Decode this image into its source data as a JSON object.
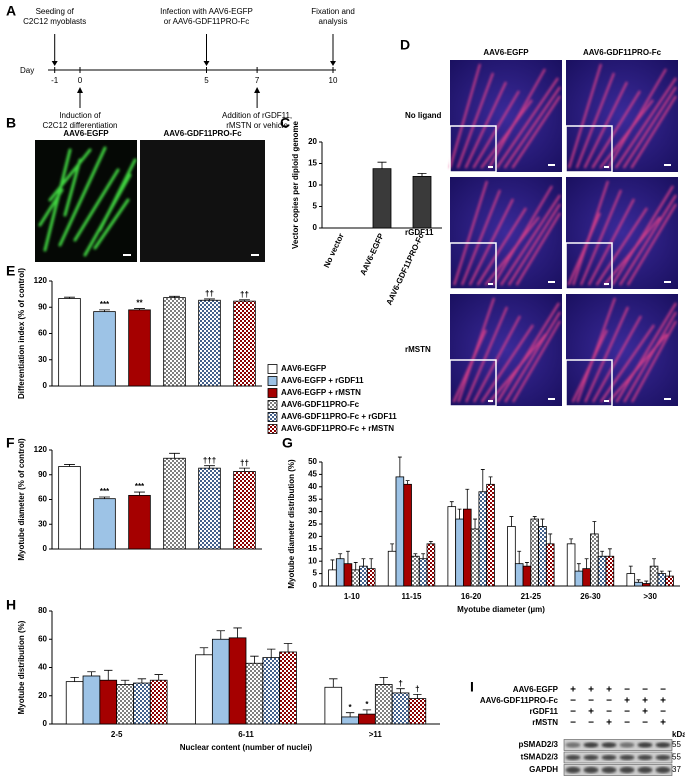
{
  "panel_letters": [
    "A",
    "B",
    "C",
    "D",
    "E",
    "F",
    "G",
    "H",
    "I"
  ],
  "timeline": {
    "day_label": "Day",
    "days": [
      "-1",
      "0",
      "5",
      "7",
      "10"
    ],
    "events": [
      {
        "day": "-1",
        "side": "above",
        "lines": [
          "Seeding of",
          "C2C12 myoblasts"
        ]
      },
      {
        "day": "5",
        "side": "above",
        "lines": [
          "Infection with AAV6-EGFP",
          "or AAV6-GDF11PRO-Fc"
        ]
      },
      {
        "day": "10",
        "side": "above",
        "lines": [
          "Fixation and",
          "analysis"
        ]
      },
      {
        "day": "0",
        "side": "below",
        "lines": [
          "Induction of",
          "C2C12 differentiation"
        ]
      },
      {
        "day": "7",
        "side": "below",
        "lines": [
          "Addition of rGDF11,",
          "rMSTN or vehicle"
        ]
      }
    ]
  },
  "panel_b": {
    "labels": [
      "AAV6-EGFP",
      "AAV6-GDF11PRO-Fc"
    ]
  },
  "panel_d": {
    "columns": [
      "AAV6-EGFP",
      "AAV6-GDF11PRO-Fc"
    ],
    "rows": [
      "No ligand",
      "rGDF11",
      "rMSTN"
    ]
  },
  "legend": [
    "AAV6-EGFP",
    "AAV6-EGFP + rGDF11",
    "AAV6-EGFP + rMSTN",
    "AAV6-GDF11PRO-Fc",
    "AAV6-GDF11PRO-Fc + rGDF11",
    "AAV6-GDF11PRO-Fc + rMSTN"
  ],
  "chart_data": [
    {
      "type": "bar",
      "y_label": "Vector copies per diploid genome",
      "categories": [
        "No vector",
        "AAV6-EGFP",
        "AAV6-GDF11PRO-Fc"
      ],
      "series": [
        {
          "color": "#3a3a3a",
          "values": [
            0,
            13.8,
            12.0
          ],
          "errors": [
            0,
            1.5,
            0.7
          ]
        }
      ],
      "ylim": [
        0,
        20
      ],
      "yticks": [
        0,
        5,
        10,
        15,
        20
      ]
    },
    {
      "type": "bar",
      "y_label": "Differentiation index (% of control)",
      "series": [
        {
          "color": "#ffffff",
          "values": [
            100
          ],
          "errors": [
            1.5
          ]
        },
        {
          "color": "#9dc3e6",
          "values": [
            85
          ],
          "errors": [
            2
          ]
        },
        {
          "color": "#a50000",
          "values": [
            87
          ],
          "errors": [
            1.5
          ]
        },
        {
          "color": "#7f7f7f",
          "pattern": "checker",
          "values": [
            101
          ],
          "errors": [
            1.5
          ]
        },
        {
          "color": "#44618c",
          "pattern": "checker",
          "values": [
            98
          ],
          "errors": [
            1.5
          ]
        },
        {
          "color": "#8b0000",
          "pattern": "checker",
          "values": [
            97
          ],
          "errors": [
            1.5
          ]
        }
      ],
      "annotations": [
        {
          "series": 1,
          "label": "***"
        },
        {
          "series": 2,
          "label": "**"
        },
        {
          "series": 4,
          "label": "††"
        },
        {
          "series": 5,
          "label": "††"
        }
      ],
      "ylim": [
        0,
        120
      ],
      "yticks": [
        0,
        30,
        60,
        90,
        120
      ]
    },
    {
      "type": "bar",
      "y_label": "Myotube diameter (% of control)",
      "series": [
        {
          "color": "#ffffff",
          "values": [
            100
          ],
          "errors": [
            2.5
          ]
        },
        {
          "color": "#9dc3e6",
          "values": [
            61
          ],
          "errors": [
            2
          ]
        },
        {
          "color": "#a50000",
          "values": [
            65
          ],
          "errors": [
            4
          ]
        },
        {
          "color": "#7f7f7f",
          "pattern": "checker",
          "values": [
            110
          ],
          "errors": [
            6
          ]
        },
        {
          "color": "#44618c",
          "pattern": "checker",
          "values": [
            98
          ],
          "errors": [
            3
          ]
        },
        {
          "color": "#8b0000",
          "pattern": "checker",
          "values": [
            94
          ],
          "errors": [
            4
          ]
        }
      ],
      "annotations": [
        {
          "series": 1,
          "label": "***"
        },
        {
          "series": 2,
          "label": "***"
        },
        {
          "series": 4,
          "label": "†††"
        },
        {
          "series": 5,
          "label": "††"
        }
      ],
      "ylim": [
        0,
        120
      ],
      "yticks": [
        0,
        30,
        60,
        90,
        120
      ]
    },
    {
      "type": "bar",
      "y_label": "Myotube diameter distribution (%)",
      "x_label": "Myotube diameter (µm)",
      "categories": [
        "1-10",
        "11-15",
        "16-20",
        "21-25",
        "26-30",
        ">30"
      ],
      "series": [
        {
          "color": "#ffffff",
          "values": [
            6.5,
            14,
            32,
            24,
            17,
            5
          ],
          "errors": [
            4,
            3,
            2,
            4,
            2,
            3
          ]
        },
        {
          "color": "#9dc3e6",
          "values": [
            11,
            44,
            27,
            9,
            6,
            1.5
          ],
          "errors": [
            2,
            8,
            4,
            5,
            3,
            1
          ]
        },
        {
          "color": "#a50000",
          "values": [
            9,
            41,
            31,
            8,
            7,
            1
          ],
          "errors": [
            5,
            1.5,
            8,
            1.5,
            4,
            1
          ]
        },
        {
          "color": "#7f7f7f",
          "pattern": "checker",
          "values": [
            6.5,
            12,
            23,
            27,
            21,
            8
          ],
          "errors": [
            3,
            1,
            4,
            1,
            5,
            3
          ]
        },
        {
          "color": "#44618c",
          "pattern": "checker",
          "values": [
            8,
            11,
            38,
            24,
            12,
            5
          ],
          "errors": [
            3,
            2,
            9,
            3,
            2,
            1
          ]
        },
        {
          "color": "#8b0000",
          "pattern": "checker",
          "values": [
            7,
            17,
            41,
            17,
            12,
            4
          ],
          "errors": [
            4,
            1,
            3,
            4,
            3,
            2
          ]
        }
      ],
      "ylim": [
        0,
        50
      ],
      "yticks": [
        0,
        5,
        10,
        15,
        20,
        25,
        30,
        35,
        40,
        45,
        50
      ]
    },
    {
      "type": "bar",
      "y_label": "Myotube distribution (%)",
      "x_label": "Nuclear content (number of nuclei)",
      "categories": [
        "2-5",
        "6-11",
        ">11"
      ],
      "series": [
        {
          "color": "#ffffff",
          "values": [
            30,
            49,
            26
          ],
          "errors": [
            3,
            5,
            6
          ]
        },
        {
          "color": "#9dc3e6",
          "values": [
            34,
            60,
            5
          ],
          "errors": [
            3,
            6,
            3
          ]
        },
        {
          "color": "#a50000",
          "values": [
            31,
            61,
            7
          ],
          "errors": [
            7,
            7,
            3
          ]
        },
        {
          "color": "#7f7f7f",
          "pattern": "checker",
          "values": [
            28,
            43,
            28
          ],
          "errors": [
            3,
            5,
            5
          ]
        },
        {
          "color": "#44618c",
          "pattern": "checker",
          "values": [
            29,
            47,
            22
          ],
          "errors": [
            3,
            6,
            3
          ]
        },
        {
          "color": "#8b0000",
          "pattern": "checker",
          "values": [
            31,
            51,
            18
          ],
          "errors": [
            4,
            6,
            3
          ]
        }
      ],
      "annotations": [
        {
          "series": 1,
          "category": 2,
          "label": "*"
        },
        {
          "series": 2,
          "category": 2,
          "label": "*"
        },
        {
          "series": 4,
          "category": 2,
          "label": "†"
        },
        {
          "series": 5,
          "category": 2,
          "label": "†"
        }
      ],
      "ylim": [
        0,
        80
      ],
      "yticks": [
        0,
        20,
        40,
        60,
        80
      ]
    }
  ],
  "blot": {
    "conditions": [
      {
        "name": "AAV6-EGFP",
        "signs": [
          "+",
          "+",
          "+",
          "−",
          "−",
          "−"
        ]
      },
      {
        "name": "AAV6-GDF11PRO-Fc",
        "signs": [
          "−",
          "−",
          "−",
          "+",
          "+",
          "+"
        ]
      },
      {
        "name": "rGDF11",
        "signs": [
          "−",
          "+",
          "−",
          "−",
          "+",
          "−"
        ]
      },
      {
        "name": "rMSTN",
        "signs": [
          "−",
          "−",
          "+",
          "−",
          "−",
          "+"
        ]
      }
    ],
    "unit": "kDa",
    "bands": [
      {
        "name": "pSMAD2/3",
        "kda": "55"
      },
      {
        "name": "tSMAD2/3",
        "kda": "55"
      },
      {
        "name": "GAPDH",
        "kda": "37"
      }
    ]
  }
}
